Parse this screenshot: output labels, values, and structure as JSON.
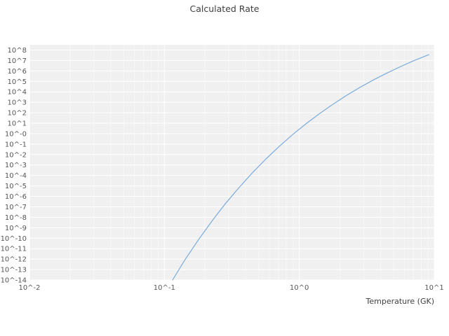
{
  "page": {
    "background": "#ffffff"
  },
  "chart_data": {
    "type": "line",
    "title": "Calculated Rate",
    "xlabel": "Temperature (GK)",
    "ylabel": "",
    "x_scale": "log",
    "y_scale": "log",
    "xlim": [
      0.01,
      10
    ],
    "ylim": [
      1e-14,
      316000000.0
    ],
    "grid": true,
    "legend": "none",
    "line_color": "#7aabdd",
    "plot_bg": "#f0f0f0",
    "grid_color": "#ffffff",
    "text_color": "#555555",
    "title_color": "#3f3f3f",
    "x_ticks": [
      {
        "value": 0.01,
        "label": "10^-2"
      },
      {
        "value": 0.1,
        "label": "10^-1"
      },
      {
        "value": 1,
        "label": "10^0"
      },
      {
        "value": 10,
        "label": "10^1"
      }
    ],
    "y_ticks": [
      {
        "value": 100000000.0,
        "label": "10^8"
      },
      {
        "value": 10000000.0,
        "label": "10^7"
      },
      {
        "value": 1000000.0,
        "label": "10^6"
      },
      {
        "value": 100000.0,
        "label": "10^5"
      },
      {
        "value": 10000.0,
        "label": "10^4"
      },
      {
        "value": 1000.0,
        "label": "10^3"
      },
      {
        "value": 100.0,
        "label": "10^2"
      },
      {
        "value": 10.0,
        "label": "10^1"
      },
      {
        "value": 1.0,
        "label": "10^-0"
      },
      {
        "value": 0.1,
        "label": "10^-1"
      },
      {
        "value": 0.01,
        "label": "10^-2"
      },
      {
        "value": 0.001,
        "label": "10^-3"
      },
      {
        "value": 0.0001,
        "label": "10^-4"
      },
      {
        "value": 1e-05,
        "label": "10^-5"
      },
      {
        "value": 1e-06,
        "label": "10^-6"
      },
      {
        "value": 1e-07,
        "label": "10^-7"
      },
      {
        "value": 1e-08,
        "label": "10^-8"
      },
      {
        "value": 1e-09,
        "label": "10^-9"
      },
      {
        "value": 1e-10,
        "label": "10^-10"
      },
      {
        "value": 1e-11,
        "label": "10^-11"
      },
      {
        "value": 1e-12,
        "label": "10^-12"
      },
      {
        "value": 1e-13,
        "label": "10^-13"
      },
      {
        "value": 1e-14,
        "label": "10^-14"
      }
    ],
    "series": [
      {
        "name": "calculated-rate",
        "points": [
          [
            0.115,
            1e-14
          ],
          [
            0.141,
            7.4e-13
          ],
          [
            0.178,
            6.5e-11
          ],
          [
            0.224,
            4e-09
          ],
          [
            0.282,
            1.9e-07
          ],
          [
            0.355,
            6.3e-06
          ],
          [
            0.447,
            0.00017
          ],
          [
            0.562,
            0.0035
          ],
          [
            0.708,
            0.059
          ],
          [
            0.891,
            0.81
          ],
          [
            1.122,
            8.9
          ],
          [
            1.413,
            83
          ],
          [
            1.778,
            660
          ],
          [
            2.239,
            4570
          ],
          [
            2.818,
            27000.0
          ],
          [
            3.548,
            140000.0
          ],
          [
            4.467,
            630000.0
          ],
          [
            5.623,
            2600000.0
          ],
          [
            7.079,
            9800000.0
          ],
          [
            9.12,
            36000000.0
          ]
        ]
      }
    ]
  }
}
